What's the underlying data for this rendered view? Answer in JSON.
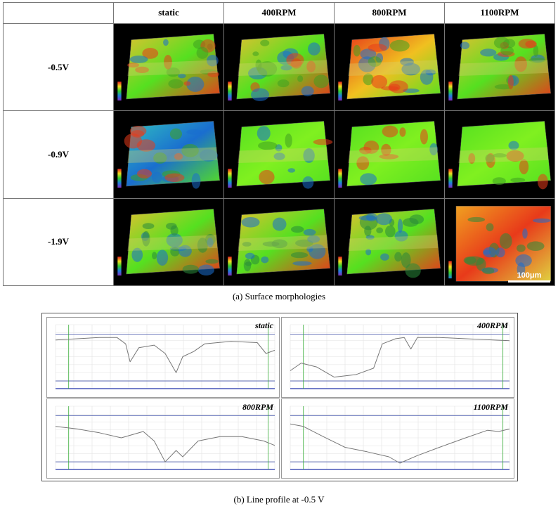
{
  "grid": {
    "corner": "",
    "columns": [
      "static",
      "400RPM",
      "800RPM",
      "1100RPM"
    ],
    "rows": [
      "-0.5V",
      "-0.9V",
      "-1.9V"
    ],
    "scale_bar": "100μm"
  },
  "caption_a": "(a) Surface morphologies",
  "caption_b": "(b) Line profile at -0.5 V",
  "profiles": {
    "panels": [
      {
        "title": "static"
      },
      {
        "title": "400RPM"
      },
      {
        "title": "800RPM"
      },
      {
        "title": "1100RPM"
      }
    ]
  },
  "colors": {
    "profile_line": "#777777",
    "guide_line": "#4455aa",
    "marker_line": "#33aa33",
    "surface_high": "#e83a1a",
    "surface_mid": "#55e020",
    "surface_low": "#1a6ecf"
  }
}
